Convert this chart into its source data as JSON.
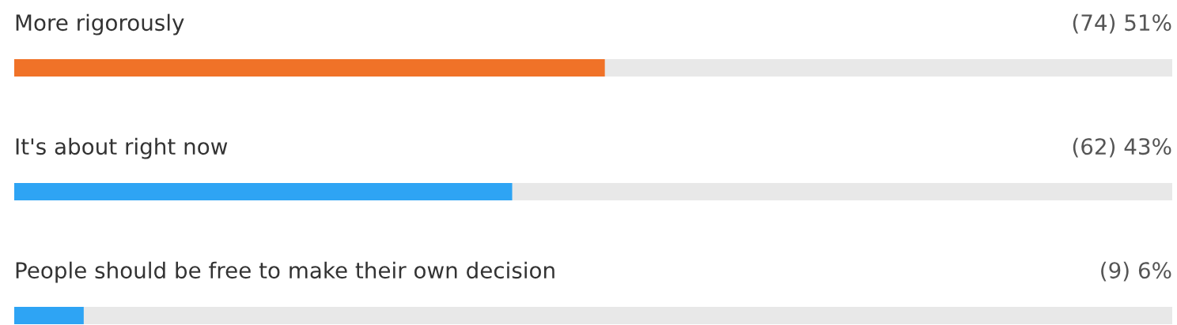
{
  "chart_data": {
    "type": "bar",
    "orientation": "horizontal",
    "categories": [
      "More rigorously",
      "It's about right now",
      "People should be free to make their own decision"
    ],
    "values": [
      51,
      43,
      6
    ],
    "colors": [
      "#f07228",
      "#2ea4f4",
      "#2ea4f4"
    ],
    "value_labels": [
      "(74) 51%",
      "(62) 43%",
      "(9) 6%"
    ],
    "xlim": [
      0,
      100
    ]
  }
}
